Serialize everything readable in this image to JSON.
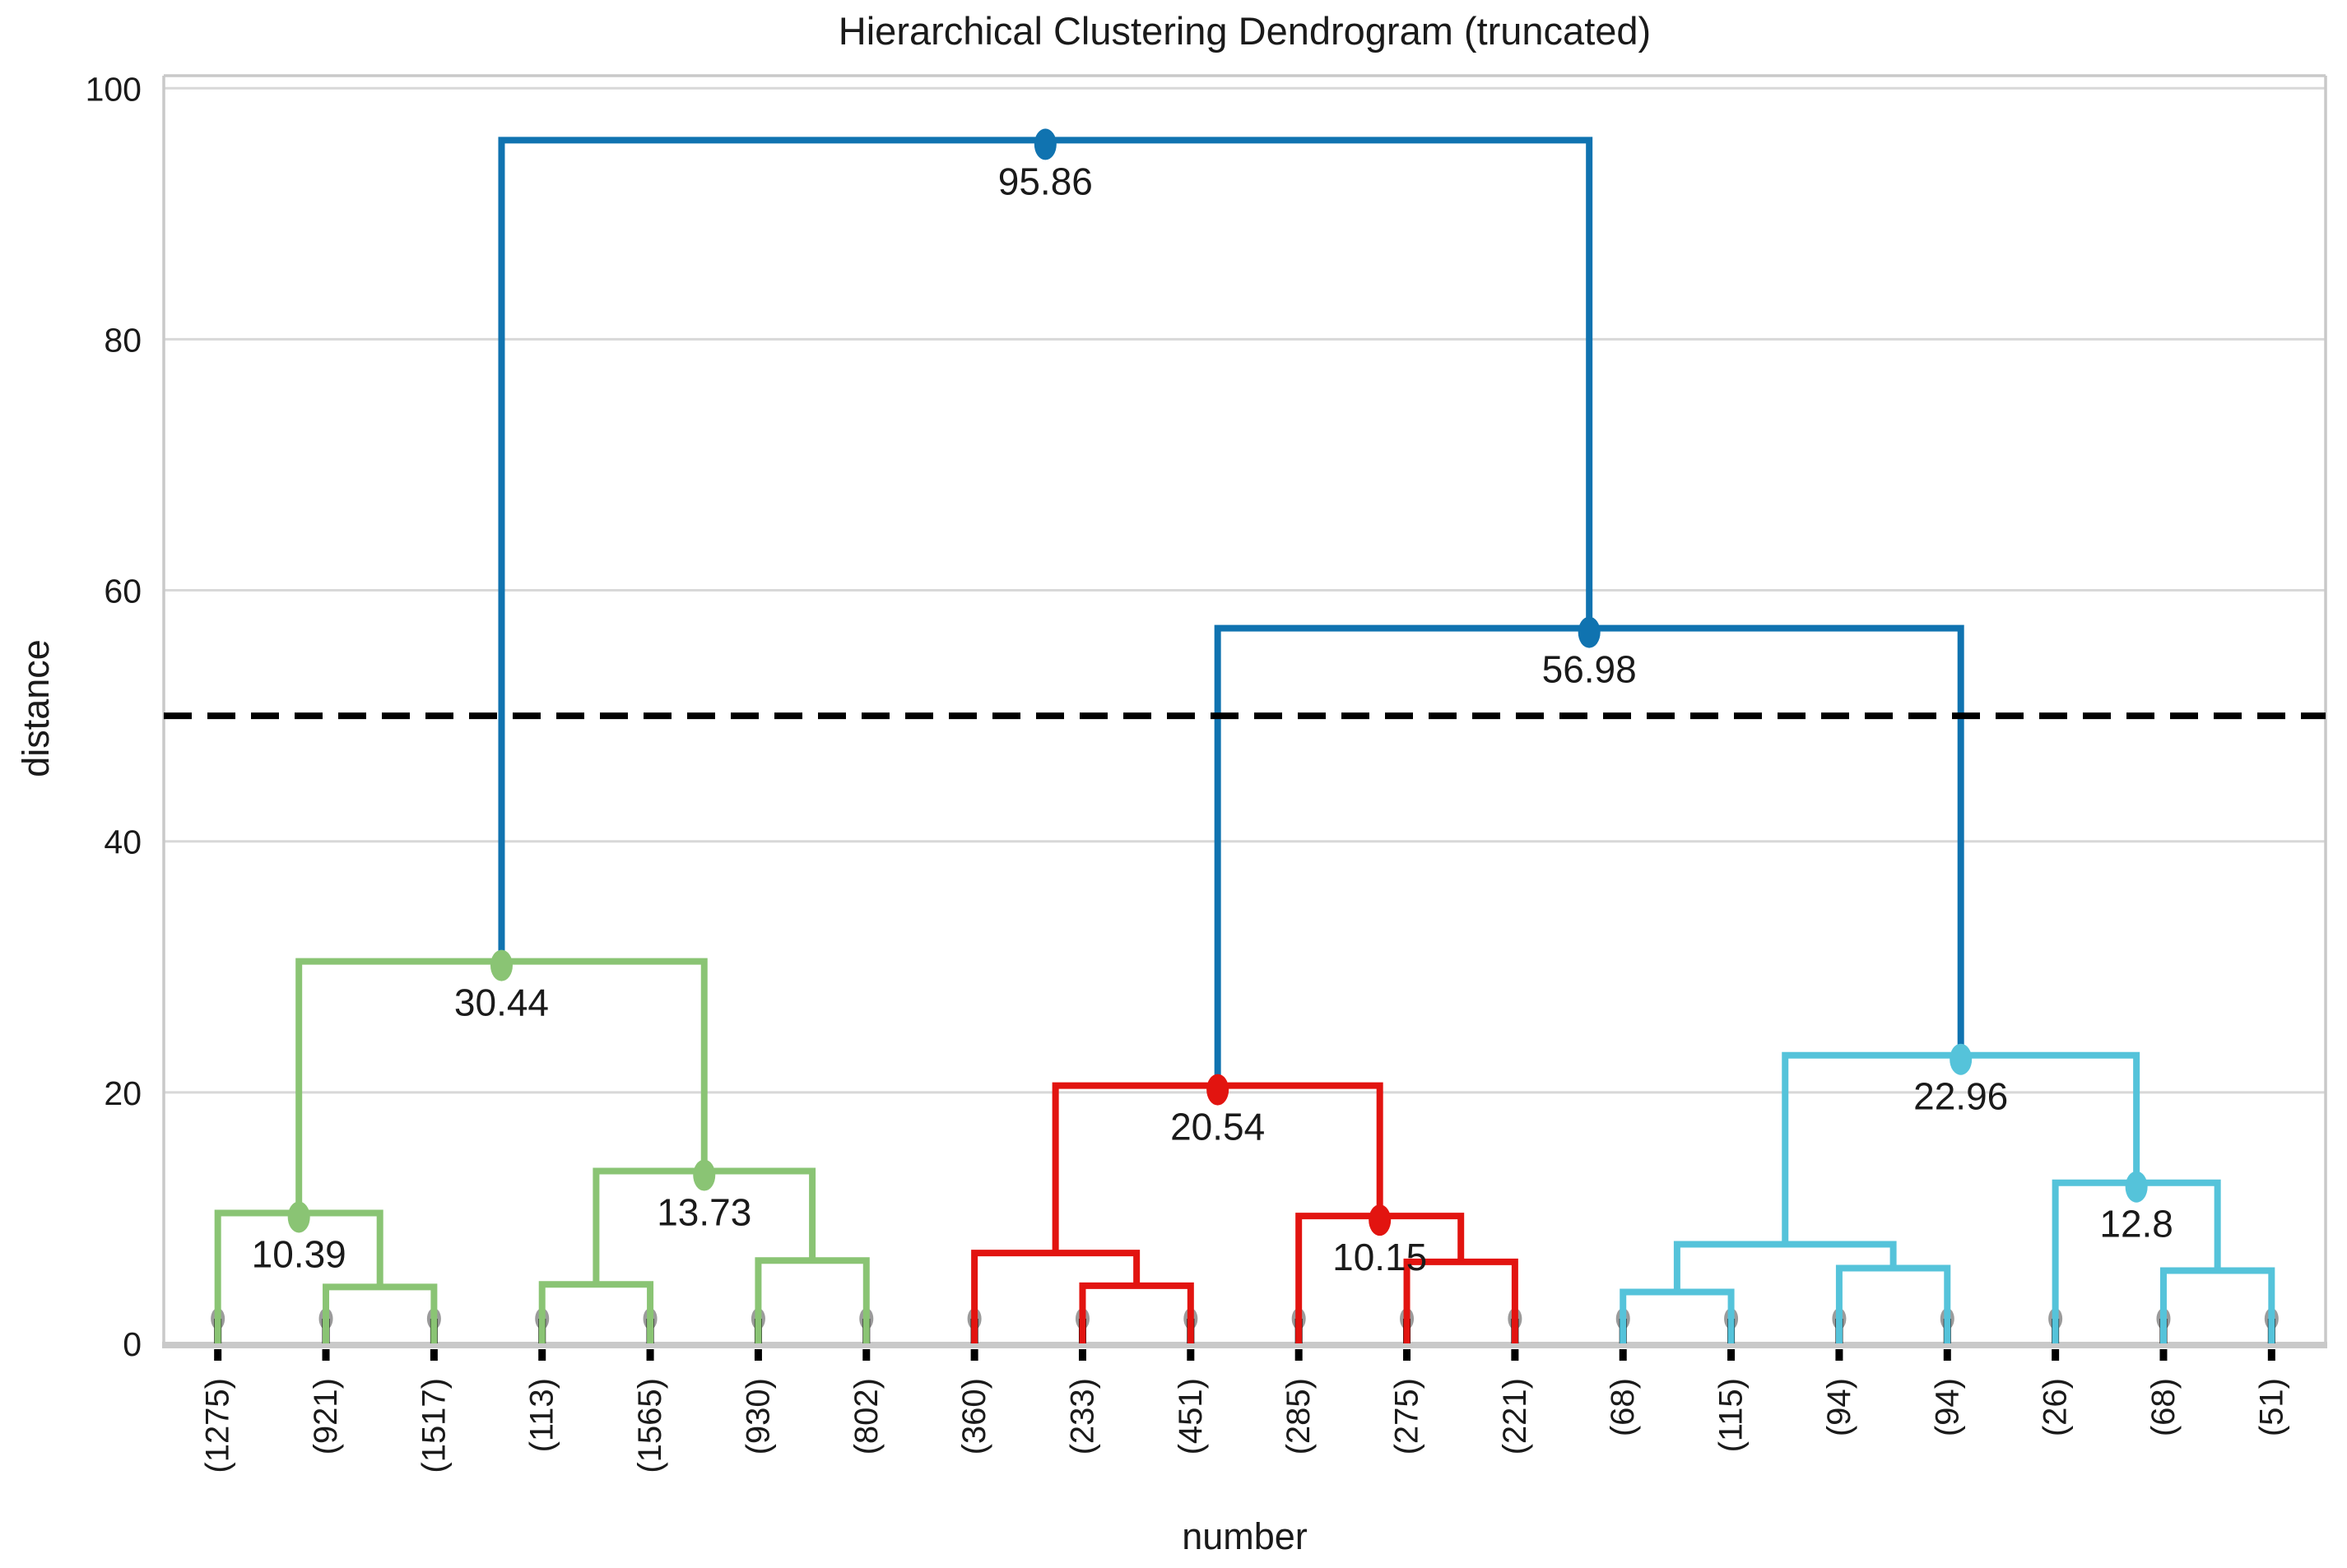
{
  "title": "Hierarchical Clustering Dendrogram (truncated)",
  "x_axis": {
    "label": "number"
  },
  "y_axis": {
    "label": "distance",
    "ticks": [
      "0",
      "20",
      "40",
      "60",
      "80",
      "100"
    ]
  },
  "colors": {
    "above_threshold_link": "#1073b0",
    "cluster1_link": "#8ac474",
    "cluster2_link": "#e21410",
    "cluster3_link": "#55c3da",
    "grid": "#d8d8d8",
    "spine": "#c9c9c9",
    "text": "#1a1a1a",
    "threshold_line": "#000000",
    "leaf_marker": "#9b9b9b",
    "leaf_tick": "#000000",
    "background": "#ffffff"
  },
  "chart_data": {
    "type": "dendrogram",
    "title": "Hierarchical Clustering Dendrogram (truncated)",
    "xlabel": "number",
    "ylabel": "distance",
    "ylim": [
      0,
      101
    ],
    "y_ticks": [
      0,
      20,
      40,
      60,
      80,
      100
    ],
    "grid": "horizontal",
    "legend": "none",
    "threshold_line": {
      "value": 50,
      "style": "dashed",
      "color": "#000000"
    },
    "leaves": [
      "(1275)",
      "(921)",
      "(1517)",
      "(113)",
      "(1565)",
      "(930)",
      "(802)",
      "(360)",
      "(233)",
      "(451)",
      "(285)",
      "(275)",
      "(221)",
      "(68)",
      "(115)",
      "(94)",
      "(94)",
      "(26)",
      "(68)",
      "(51)"
    ],
    "merges": [
      {
        "id": "g1",
        "left": "L1",
        "right": "L2",
        "height": 4.5,
        "color": "cluster1_link",
        "label": ""
      },
      {
        "id": "g2",
        "left": "L0",
        "right": "g1",
        "height": 10.39,
        "color": "cluster1_link",
        "label": "10.39"
      },
      {
        "id": "g3",
        "left": "L3",
        "right": "L4",
        "height": 4.7,
        "color": "cluster1_link",
        "label": ""
      },
      {
        "id": "g4",
        "left": "L5",
        "right": "L6",
        "height": 6.6,
        "color": "cluster1_link",
        "label": ""
      },
      {
        "id": "g5",
        "left": "g3",
        "right": "g4",
        "height": 13.73,
        "color": "cluster1_link",
        "label": "13.73"
      },
      {
        "id": "g6",
        "left": "g2",
        "right": "g5",
        "height": 30.44,
        "color": "cluster1_link",
        "label": "30.44"
      },
      {
        "id": "r1",
        "left": "L8",
        "right": "L9",
        "height": 4.6,
        "color": "cluster2_link",
        "label": ""
      },
      {
        "id": "r2",
        "left": "L7",
        "right": "r1",
        "height": 7.2,
        "color": "cluster2_link",
        "label": ""
      },
      {
        "id": "r3",
        "left": "L11",
        "right": "L12",
        "height": 6.5,
        "color": "cluster2_link",
        "label": ""
      },
      {
        "id": "r4",
        "left": "L10",
        "right": "r3",
        "height": 10.15,
        "color": "cluster2_link",
        "label": "10.15"
      },
      {
        "id": "r5",
        "left": "r2",
        "right": "r4",
        "height": 20.54,
        "color": "cluster2_link",
        "label": "20.54"
      },
      {
        "id": "c1",
        "left": "L13",
        "right": "L14",
        "height": 4.1,
        "color": "cluster3_link",
        "label": ""
      },
      {
        "id": "c2",
        "left": "L15",
        "right": "L16",
        "height": 6.0,
        "color": "cluster3_link",
        "label": ""
      },
      {
        "id": "c3",
        "left": "c1",
        "right": "c2",
        "height": 7.9,
        "color": "cluster3_link",
        "label": ""
      },
      {
        "id": "c4",
        "left": "L18",
        "right": "L19",
        "height": 5.8,
        "color": "cluster3_link",
        "label": ""
      },
      {
        "id": "c5",
        "left": "L17",
        "right": "c4",
        "height": 12.8,
        "color": "cluster3_link",
        "label": "12.8"
      },
      {
        "id": "c6",
        "left": "c3",
        "right": "c5",
        "height": 22.96,
        "color": "cluster3_link",
        "label": "22.96"
      },
      {
        "id": "b1",
        "left": "r5",
        "right": "c6",
        "height": 56.98,
        "color": "above_threshold_link",
        "label": "56.98"
      },
      {
        "id": "b2",
        "left": "g6",
        "right": "b1",
        "height": 95.86,
        "color": "above_threshold_link",
        "label": "95.86"
      }
    ]
  }
}
